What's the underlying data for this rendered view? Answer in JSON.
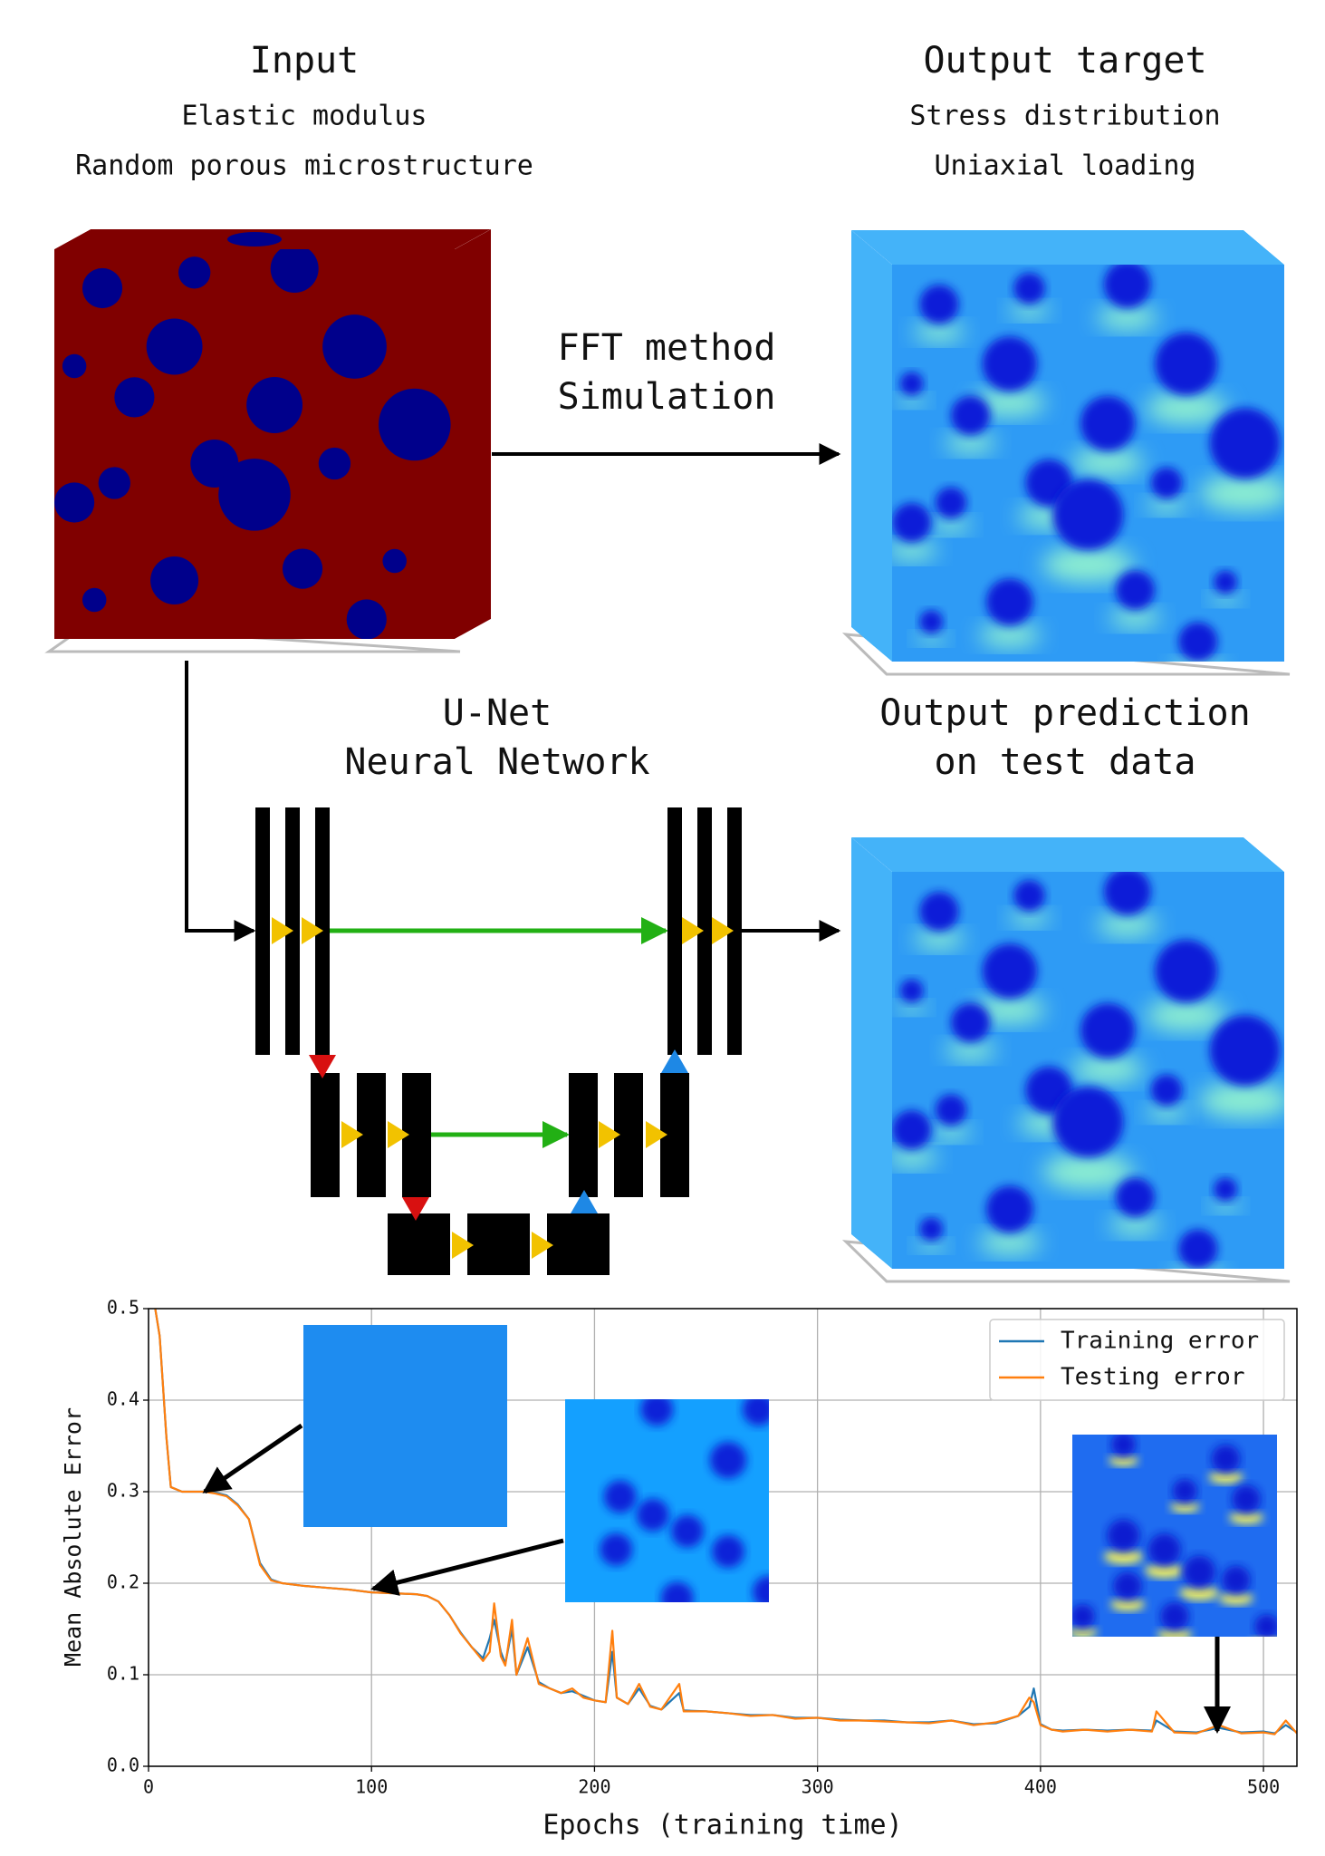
{
  "input": {
    "title": "Input",
    "lines": [
      "Elastic modulus",
      "Random porous microstructure"
    ]
  },
  "output_target": {
    "title": "Output target",
    "lines": [
      "Stress distribution",
      "Uniaxial loading"
    ]
  },
  "simulation": {
    "lines": [
      "FFT method",
      "Simulation"
    ]
  },
  "network": {
    "lines": [
      "U-Net",
      "Neural Network"
    ]
  },
  "prediction": {
    "lines": [
      "Output prediction",
      "on test data"
    ]
  },
  "chart_data": {
    "type": "line",
    "x_label": "Epochs (training time)",
    "y_label": "Mean Absolute Error",
    "xlim": [
      0,
      515
    ],
    "ylim": [
      0,
      0.5
    ],
    "xticks": [
      0,
      100,
      200,
      300,
      400,
      500
    ],
    "yticks": [
      {
        "value": 0,
        "label": "0.0"
      },
      0.1,
      0.2,
      0.3,
      0.4,
      0.5
    ],
    "grid": true,
    "legend": "upper right",
    "x": [
      3,
      5,
      8,
      10,
      15,
      20,
      25,
      30,
      35,
      40,
      45,
      50,
      55,
      60,
      70,
      80,
      90,
      100,
      110,
      120,
      125,
      130,
      135,
      140,
      145,
      150,
      153,
      155,
      158,
      160,
      163,
      165,
      170,
      175,
      180,
      185,
      190,
      195,
      200,
      205,
      208,
      210,
      215,
      220,
      225,
      230,
      238,
      240,
      250,
      260,
      270,
      280,
      290,
      300,
      310,
      320,
      330,
      340,
      350,
      360,
      370,
      380,
      390,
      395,
      397,
      400,
      405,
      410,
      420,
      430,
      440,
      450,
      452,
      460,
      470,
      480,
      490,
      500,
      505,
      510,
      515
    ],
    "series": [
      {
        "name": "Training error",
        "color": "#1f77b4",
        "values": [
          0.5,
          0.47,
          0.36,
          0.305,
          0.3,
          0.3,
          0.3,
          0.299,
          0.296,
          0.286,
          0.27,
          0.222,
          0.204,
          0.2,
          0.197,
          0.195,
          0.193,
          0.19,
          0.189,
          0.188,
          0.186,
          0.18,
          0.165,
          0.146,
          0.13,
          0.118,
          0.14,
          0.16,
          0.125,
          0.112,
          0.15,
          0.1,
          0.13,
          0.092,
          0.085,
          0.08,
          0.082,
          0.077,
          0.072,
          0.07,
          0.125,
          0.075,
          0.068,
          0.085,
          0.066,
          0.062,
          0.08,
          0.061,
          0.06,
          0.058,
          0.056,
          0.056,
          0.053,
          0.053,
          0.051,
          0.05,
          0.05,
          0.048,
          0.048,
          0.05,
          0.046,
          0.047,
          0.055,
          0.065,
          0.085,
          0.046,
          0.04,
          0.039,
          0.04,
          0.039,
          0.04,
          0.039,
          0.05,
          0.038,
          0.037,
          0.042,
          0.037,
          0.038,
          0.036,
          0.045,
          0.037
        ]
      },
      {
        "name": "Testing error",
        "color": "#ff7f0e",
        "values": [
          0.5,
          0.47,
          0.36,
          0.305,
          0.3,
          0.3,
          0.3,
          0.298,
          0.295,
          0.285,
          0.27,
          0.22,
          0.203,
          0.2,
          0.197,
          0.195,
          0.193,
          0.19,
          0.189,
          0.188,
          0.186,
          0.18,
          0.165,
          0.145,
          0.13,
          0.115,
          0.125,
          0.178,
          0.12,
          0.11,
          0.16,
          0.1,
          0.14,
          0.09,
          0.085,
          0.08,
          0.085,
          0.075,
          0.072,
          0.07,
          0.148,
          0.075,
          0.068,
          0.09,
          0.065,
          0.062,
          0.09,
          0.06,
          0.06,
          0.058,
          0.055,
          0.056,
          0.052,
          0.053,
          0.05,
          0.05,
          0.049,
          0.048,
          0.047,
          0.05,
          0.045,
          0.048,
          0.055,
          0.075,
          0.07,
          0.045,
          0.04,
          0.038,
          0.04,
          0.038,
          0.04,
          0.038,
          0.06,
          0.037,
          0.036,
          0.045,
          0.036,
          0.037,
          0.035,
          0.05,
          0.036
        ]
      }
    ]
  }
}
